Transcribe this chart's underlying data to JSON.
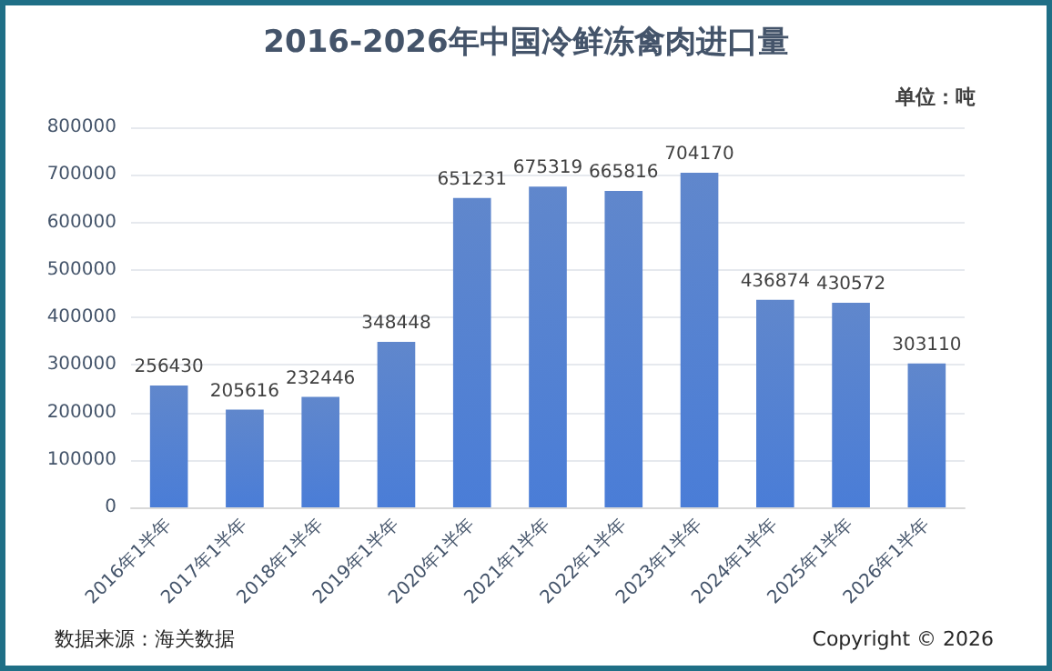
{
  "chart_data": {
    "type": "bar",
    "title": "2016-2026年中国冷鲜冻禽肉进口量",
    "categories": [
      "2016年1半年",
      "2017年1半年",
      "2018年1半年",
      "2019年1半年",
      "2020年1半年",
      "2021年1半年",
      "2022年1半年",
      "2023年1半年",
      "2024年1半年",
      "2025年1半年",
      "2026年1半年"
    ],
    "values": [
      256430,
      205616,
      232446,
      348448,
      651231,
      675319,
      665816,
      704170,
      436874,
      430572,
      303110
    ],
    "color": "#4472c4",
    "ylim": [
      0,
      800000
    ],
    "yticks": [
      0,
      100000,
      200000,
      300000,
      400000,
      500000,
      600000,
      700000,
      800000
    ],
    "grid": "y",
    "data_labels": true,
    "annotations": [
      "单位：吨",
      "数据来源：海关数据",
      "Copyright © 2026"
    ]
  }
}
